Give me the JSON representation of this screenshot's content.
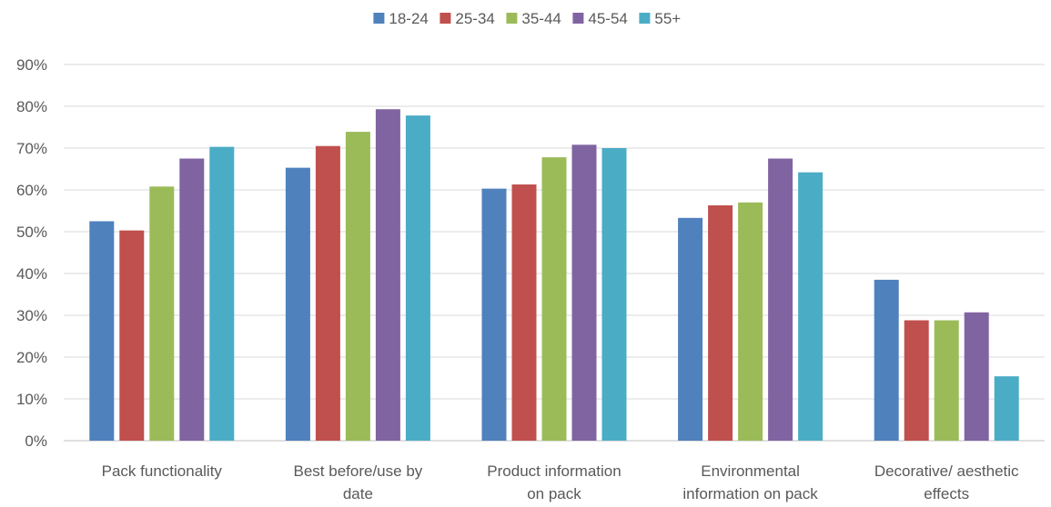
{
  "chart_data": {
    "type": "bar",
    "categories": [
      [
        "Pack functionality"
      ],
      [
        "Best before/use by",
        "date"
      ],
      [
        "Product information",
        "on pack"
      ],
      [
        "Environmental",
        "information on pack"
      ],
      [
        "Decorative/ aesthetic",
        "effects"
      ]
    ],
    "series": [
      {
        "name": "18-24",
        "color": "#4f81bd",
        "values": [
          52.5,
          65.3,
          60.3,
          53.3,
          38.5
        ]
      },
      {
        "name": "25-34",
        "color": "#c0504d",
        "values": [
          50.3,
          70.5,
          61.3,
          56.3,
          28.8
        ]
      },
      {
        "name": "35-44",
        "color": "#9bbb59",
        "values": [
          60.8,
          73.9,
          67.8,
          57.0,
          28.8
        ]
      },
      {
        "name": "45-54",
        "color": "#8064a2",
        "values": [
          67.5,
          79.3,
          70.8,
          67.5,
          30.7
        ]
      },
      {
        "name": "55+",
        "color": "#4bacc6",
        "values": [
          70.3,
          77.8,
          70.0,
          64.2,
          15.4
        ]
      }
    ],
    "y_ticks": [
      "0%",
      "10%",
      "20%",
      "30%",
      "40%",
      "50%",
      "60%",
      "70%",
      "80%",
      "90%"
    ],
    "ylim": [
      0,
      90
    ],
    "title": "",
    "xlabel": "",
    "ylabel": "",
    "grid": true,
    "legend_position": "top-center"
  }
}
